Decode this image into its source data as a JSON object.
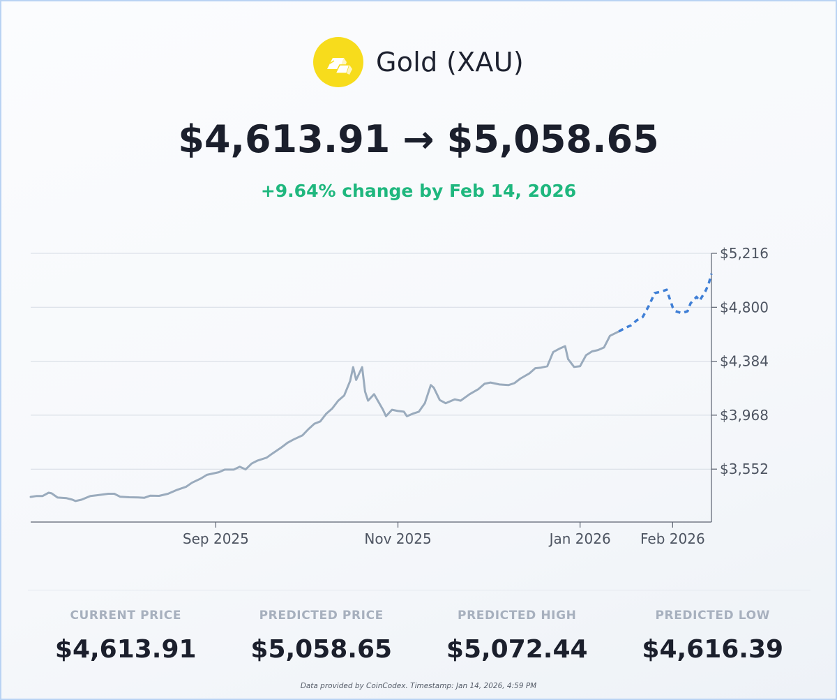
{
  "asset": {
    "name": "Gold (XAU)",
    "logo_icon": "gold-bars-icon",
    "logo_color": "#f7dc1c"
  },
  "headline": {
    "current": "$4,613.91",
    "arrow": "→",
    "predicted": "$5,058.65",
    "change": "+9.64% change by Feb 14, 2026",
    "change_color": "#1fb77e"
  },
  "stats": {
    "current_label": "CURRENT PRICE",
    "current_value": "$4,613.91",
    "predicted_label": "PREDICTED PRICE",
    "predicted_value": "$5,058.65",
    "high_label": "PREDICTED HIGH",
    "high_value": "$5,072.44",
    "low_label": "PREDICTED LOW",
    "low_value": "$4,616.39"
  },
  "footer": "Data provided by CoinCodex. Timestamp: Jan 14, 2026, 4:59 PM",
  "chart_data": {
    "type": "line",
    "title": "",
    "xlabel": "",
    "ylabel": "",
    "ylim": [
      3144,
      5216
    ],
    "xlim": [
      "2025-07-01",
      "2026-02-14"
    ],
    "y_ticks": [
      5216,
      4800,
      4384,
      3968,
      3552
    ],
    "y_tick_labels": [
      "$5,216",
      "$4,800",
      "$4,384",
      "$3,968",
      "$3,552"
    ],
    "x_ticks": [
      "2025-09-01",
      "2025-11-01",
      "2026-01-01",
      "2026-02-01"
    ],
    "x_tick_labels": [
      "Sep 2025",
      "Nov 2025",
      "Jan 2026",
      "Feb 2026"
    ],
    "y_axis_position": "right",
    "grid": true,
    "legend": "none",
    "series": [
      {
        "style": "solid",
        "color": "#9aabbd",
        "points": [
          [
            "2025-07-01",
            3338
          ],
          [
            "2025-07-03",
            3345
          ],
          [
            "2025-07-05",
            3345
          ],
          [
            "2025-07-07",
            3370
          ],
          [
            "2025-07-08",
            3365
          ],
          [
            "2025-07-10",
            3333
          ],
          [
            "2025-07-13",
            3328
          ],
          [
            "2025-07-15",
            3316
          ],
          [
            "2025-07-16",
            3306
          ],
          [
            "2025-07-18",
            3316
          ],
          [
            "2025-07-21",
            3345
          ],
          [
            "2025-07-23",
            3350
          ],
          [
            "2025-07-27",
            3362
          ],
          [
            "2025-07-29",
            3362
          ],
          [
            "2025-07-31",
            3339
          ],
          [
            "2025-08-03",
            3335
          ],
          [
            "2025-08-06",
            3334
          ],
          [
            "2025-08-08",
            3331
          ],
          [
            "2025-08-10",
            3347
          ],
          [
            "2025-08-13",
            3346
          ],
          [
            "2025-08-16",
            3362
          ],
          [
            "2025-08-19",
            3392
          ],
          [
            "2025-08-22",
            3415
          ],
          [
            "2025-08-24",
            3447
          ],
          [
            "2025-08-27",
            3480
          ],
          [
            "2025-08-29",
            3508
          ],
          [
            "2025-09-02",
            3528
          ],
          [
            "2025-09-04",
            3548
          ],
          [
            "2025-09-07",
            3548
          ],
          [
            "2025-09-09",
            3570
          ],
          [
            "2025-09-11",
            3550
          ],
          [
            "2025-09-13",
            3595
          ],
          [
            "2025-09-15",
            3618
          ],
          [
            "2025-09-18",
            3640
          ],
          [
            "2025-09-20",
            3673
          ],
          [
            "2025-09-23",
            3720
          ],
          [
            "2025-09-25",
            3755
          ],
          [
            "2025-09-27",
            3780
          ],
          [
            "2025-09-30",
            3812
          ],
          [
            "2025-10-02",
            3860
          ],
          [
            "2025-10-04",
            3902
          ],
          [
            "2025-10-06",
            3920
          ],
          [
            "2025-10-08",
            3980
          ],
          [
            "2025-10-10",
            4020
          ],
          [
            "2025-10-12",
            4080
          ],
          [
            "2025-10-14",
            4120
          ],
          [
            "2025-10-16",
            4232
          ],
          [
            "2025-10-17",
            4338
          ],
          [
            "2025-10-18",
            4240
          ],
          [
            "2025-10-20",
            4338
          ],
          [
            "2025-10-21",
            4150
          ],
          [
            "2025-10-22",
            4080
          ],
          [
            "2025-10-24",
            4130
          ],
          [
            "2025-10-27",
            4010
          ],
          [
            "2025-10-28",
            3960
          ],
          [
            "2025-10-30",
            4010
          ],
          [
            "2025-11-01",
            4000
          ],
          [
            "2025-11-03",
            3995
          ],
          [
            "2025-11-04",
            3960
          ],
          [
            "2025-11-06",
            3980
          ],
          [
            "2025-11-08",
            3995
          ],
          [
            "2025-11-10",
            4060
          ],
          [
            "2025-11-12",
            4200
          ],
          [
            "2025-11-13",
            4180
          ],
          [
            "2025-11-15",
            4085
          ],
          [
            "2025-11-17",
            4060
          ],
          [
            "2025-11-20",
            4090
          ],
          [
            "2025-11-22",
            4080
          ],
          [
            "2025-11-25",
            4130
          ],
          [
            "2025-11-28",
            4170
          ],
          [
            "2025-11-30",
            4210
          ],
          [
            "2025-12-02",
            4220
          ],
          [
            "2025-12-05",
            4205
          ],
          [
            "2025-12-08",
            4200
          ],
          [
            "2025-12-10",
            4215
          ],
          [
            "2025-12-12",
            4250
          ],
          [
            "2025-12-15",
            4290
          ],
          [
            "2025-12-17",
            4330
          ],
          [
            "2025-12-19",
            4335
          ],
          [
            "2025-12-21",
            4345
          ],
          [
            "2025-12-23",
            4455
          ],
          [
            "2025-12-25",
            4480
          ],
          [
            "2025-12-27",
            4500
          ],
          [
            "2025-12-28",
            4400
          ],
          [
            "2025-12-30",
            4340
          ],
          [
            "2026-01-01",
            4345
          ],
          [
            "2026-01-03",
            4430
          ],
          [
            "2026-01-05",
            4460
          ],
          [
            "2026-01-07",
            4470
          ],
          [
            "2026-01-09",
            4490
          ],
          [
            "2026-01-11",
            4580
          ],
          [
            "2026-01-14",
            4614
          ]
        ]
      },
      {
        "style": "dashed",
        "color": "#3f7fd6",
        "points": [
          [
            "2026-01-14",
            4614
          ],
          [
            "2026-01-16",
            4640
          ],
          [
            "2026-01-18",
            4660
          ],
          [
            "2026-01-20",
            4700
          ],
          [
            "2026-01-22",
            4725
          ],
          [
            "2026-01-24",
            4810
          ],
          [
            "2026-01-26",
            4910
          ],
          [
            "2026-01-28",
            4920
          ],
          [
            "2026-01-30",
            4935
          ],
          [
            "2026-02-01",
            4800
          ],
          [
            "2026-02-02",
            4770
          ],
          [
            "2026-02-04",
            4755
          ],
          [
            "2026-02-06",
            4770
          ],
          [
            "2026-02-07",
            4830
          ],
          [
            "2026-02-09",
            4880
          ],
          [
            "2026-02-10",
            4850
          ],
          [
            "2026-02-12",
            4925
          ],
          [
            "2026-02-13",
            4975
          ],
          [
            "2026-02-14",
            5059
          ]
        ]
      }
    ]
  }
}
